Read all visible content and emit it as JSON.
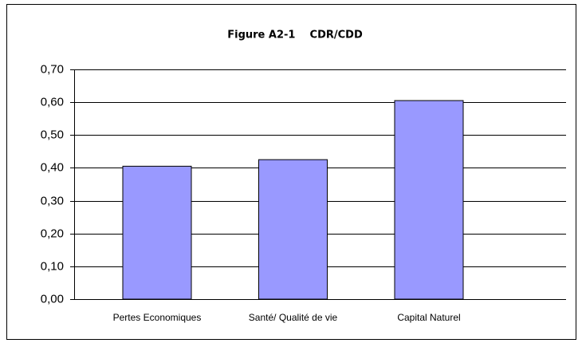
{
  "chart_data": {
    "type": "bar",
    "title": "Figure A2-1    CDR/CDD",
    "categories": [
      "Pertes Economiques",
      "Santé/ Qualité de vie",
      "Capital Naturel"
    ],
    "values": [
      0.405,
      0.425,
      0.605
    ],
    "color": "#9999ff",
    "ylim": [
      0,
      0.7
    ],
    "yticks": [
      {
        "value": 0,
        "label": "0,00"
      },
      {
        "value": 0.1,
        "label": "0,10"
      },
      {
        "value": 0.2,
        "label": "0,20"
      },
      {
        "value": 0.3,
        "label": "0,30"
      },
      {
        "value": 0.4,
        "label": "0,40"
      },
      {
        "value": 0.5,
        "label": "0,50"
      },
      {
        "value": 0.6,
        "label": "0,60"
      },
      {
        "value": 0.7,
        "label": "0,70"
      }
    ],
    "grid": true
  }
}
